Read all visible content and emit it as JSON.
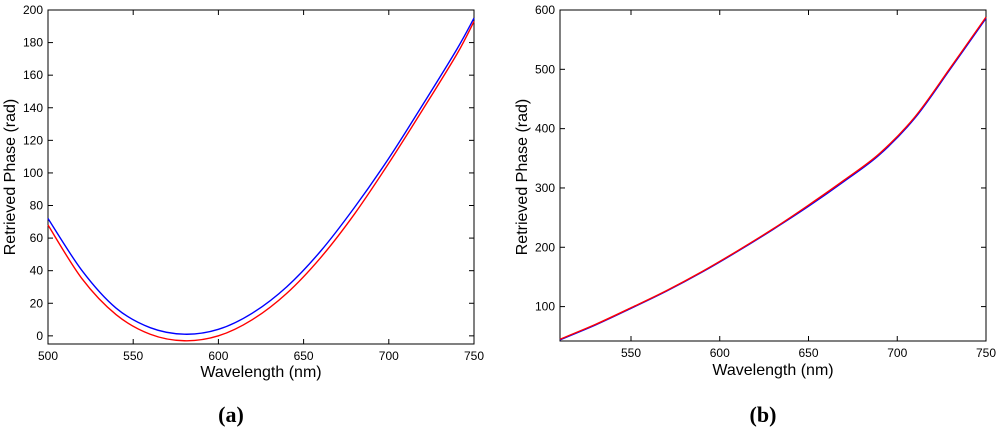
{
  "colors": {
    "series_a": "#0000ff",
    "series_b": "#ff0000",
    "axis": "#000000"
  },
  "chart_data": [
    {
      "type": "line",
      "panel_label": "(a)",
      "xlabel": "Wavelength (nm)",
      "ylabel": "Retrieved Phase (rad)",
      "xlim": [
        500,
        750
      ],
      "ylim": [
        -5,
        200
      ],
      "xticks": [
        500,
        550,
        600,
        650,
        700,
        750
      ],
      "yticks": [
        0,
        20,
        40,
        60,
        80,
        100,
        120,
        140,
        160,
        180,
        200
      ],
      "grid": false,
      "series": [
        {
          "color": "#0000ff",
          "x": [
            500,
            520,
            540,
            560,
            580,
            600,
            620,
            640,
            660,
            680,
            700,
            720,
            740,
            750
          ],
          "y": [
            72,
            40,
            17,
            5,
            1,
            4,
            14,
            30,
            52,
            79,
            109,
            142,
            176,
            195
          ]
        },
        {
          "color": "#ff0000",
          "x": [
            500,
            520,
            540,
            560,
            580,
            600,
            620,
            640,
            660,
            680,
            700,
            720,
            740,
            750
          ],
          "y": [
            68,
            35,
            13,
            1,
            -3,
            0,
            10,
            26,
            48,
            75,
            106,
            139,
            173,
            193
          ]
        }
      ]
    },
    {
      "type": "line",
      "panel_label": "(b)",
      "xlabel": "Wavelength (nm)",
      "ylabel": "Retrieved Phase (rad)",
      "xlim": [
        510,
        750
      ],
      "ylim": [
        42,
        600
      ],
      "xticks": [
        550,
        600,
        650,
        700,
        750
      ],
      "yticks": [
        100,
        200,
        300,
        400,
        500,
        600
      ],
      "grid": false,
      "series": [
        {
          "color": "#0000ff",
          "x": [
            510,
            530,
            550,
            570,
            590,
            610,
            630,
            650,
            670,
            690,
            710,
            730,
            750
          ],
          "y": [
            44,
            69,
            97,
            126,
            158,
            193,
            230,
            269,
            311,
            356,
            418,
            501,
            586
          ]
        },
        {
          "color": "#ff0000",
          "x": [
            510,
            530,
            550,
            570,
            590,
            610,
            630,
            650,
            670,
            690,
            710,
            730,
            750
          ],
          "y": [
            45,
            70,
            98,
            127,
            159,
            194,
            231,
            271,
            313,
            358,
            420,
            503,
            588
          ]
        }
      ]
    }
  ]
}
